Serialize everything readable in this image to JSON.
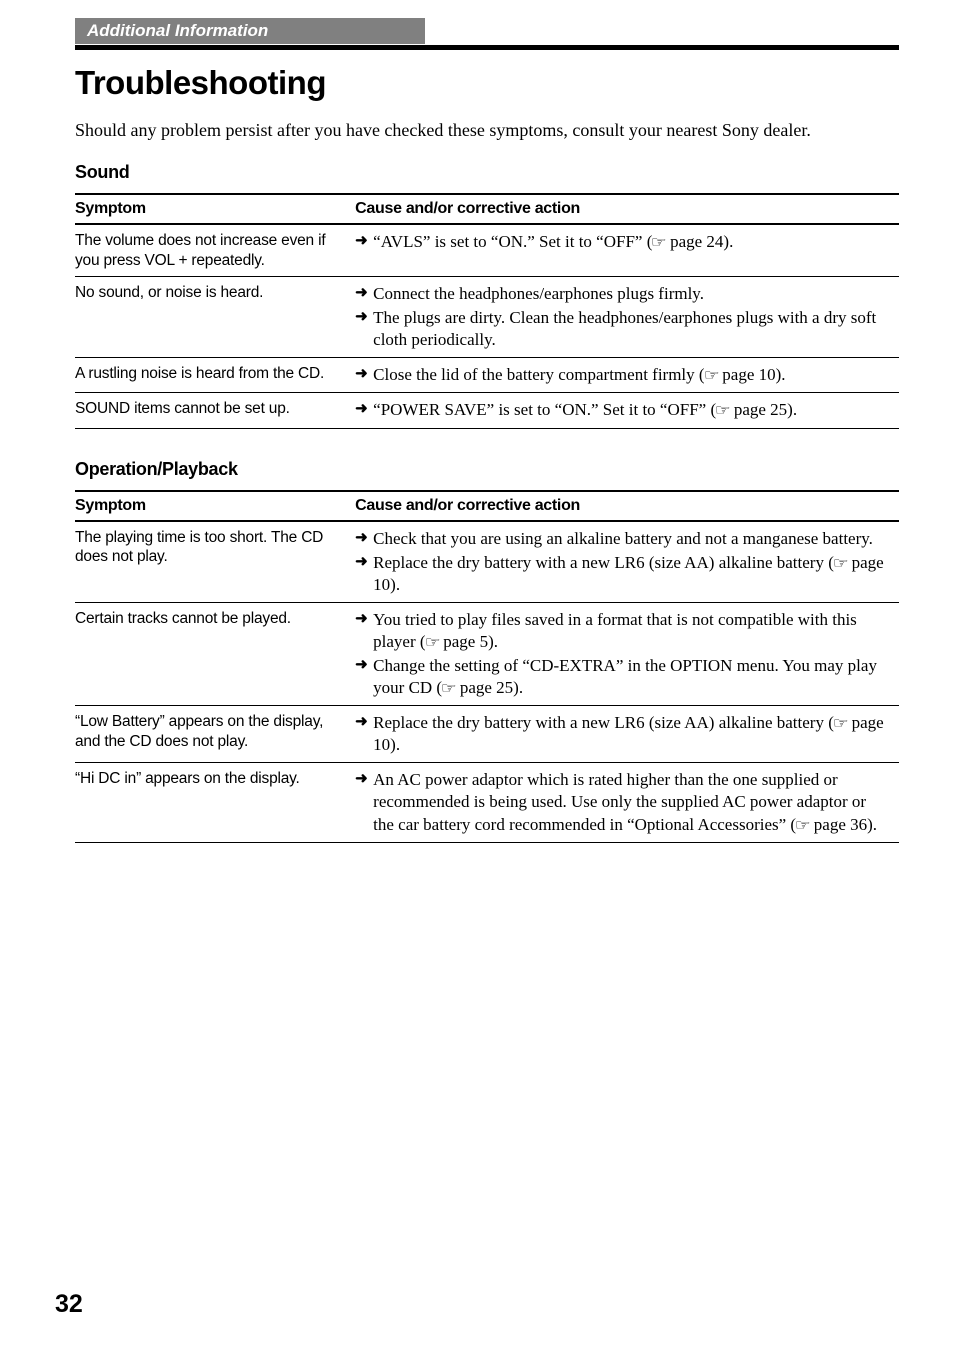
{
  "header_bar": "Additional Information",
  "page_title": "Troubleshooting",
  "intro": "Should any problem persist after you have checked these symptoms, consult your nearest Sony dealer.",
  "col_headers": {
    "symptom": "Symptom",
    "action": "Cause and/or corrective action"
  },
  "arrow_glyph": "➜",
  "ref_glyph": "☞",
  "sections": [
    {
      "heading": "Sound",
      "rows": [
        {
          "symptom": "The volume does not increase even if you press VOL + repeatedly.",
          "actions": [
            {
              "pre": "“AVLS” is set to “ON.”  Set it to “OFF” (",
              "page": " page 24).",
              "ref": true
            }
          ]
        },
        {
          "symptom": "No sound, or noise is heard.",
          "actions": [
            {
              "pre": "Connect the headphones/earphones plugs firmly.",
              "page": "",
              "ref": false
            },
            {
              "pre": "The plugs are dirty.  Clean the headphones/earphones plugs with a dry soft cloth periodically.",
              "page": "",
              "ref": false
            }
          ]
        },
        {
          "symptom": "A rustling noise is heard from the CD.",
          "actions": [
            {
              "pre": "Close the lid of the battery compartment firmly (",
              "page": " page 10).",
              "ref": true
            }
          ]
        },
        {
          "symptom": "SOUND items cannot be set up.",
          "actions": [
            {
              "pre": "“POWER SAVE” is set to “ON.”  Set it to “OFF” (",
              "page": " page 25).",
              "ref": true
            }
          ]
        }
      ]
    },
    {
      "heading": "Operation/Playback",
      "rows": [
        {
          "symptom": "The playing time is too short.  The CD does not play.",
          "actions": [
            {
              "pre": "Check that you are using an alkaline battery and not a manganese battery.",
              "page": "",
              "ref": false
            },
            {
              "pre": "Replace the dry battery with a new LR6 (size AA) alkaline battery (",
              "page": " page 10).",
              "ref": true
            }
          ]
        },
        {
          "symptom": "Certain tracks cannot be played.",
          "actions": [
            {
              "pre": "You tried to play files saved in a format that is not compatible with this player (",
              "page": " page 5).",
              "ref": true
            },
            {
              "pre": "Change the setting of “CD-EXTRA” in the OPTION menu.  You may play your CD (",
              "page": " page 25).",
              "ref": true
            }
          ]
        },
        {
          "symptom": "“Low Battery” appears on the display, and the CD does not play.",
          "actions": [
            {
              "pre": "Replace the dry battery with a new LR6 (size AA) alkaline battery (",
              "page": " page 10).",
              "ref": true
            }
          ]
        },
        {
          "symptom": "“Hi DC in” appears on the display.",
          "actions": [
            {
              "pre": "An AC power adaptor which is rated higher than the one supplied or recommended is being used.  Use only the supplied AC power adaptor or the car battery cord recommended in “Optional Accessories” (",
              "page": " page 36).",
              "ref": true
            }
          ]
        }
      ]
    }
  ],
  "page_number": "32"
}
